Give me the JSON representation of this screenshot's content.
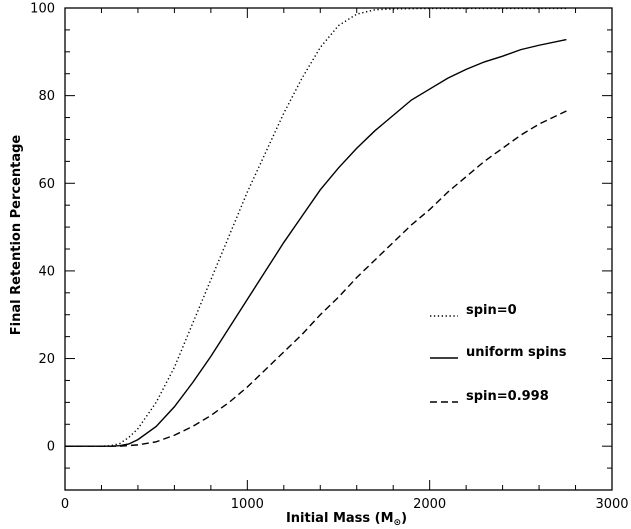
{
  "chart_data": {
    "type": "line",
    "title": "",
    "xlabel": "Initial Mass (M",
    "xlabel_sub": "⊙",
    "xlabel_close": ")",
    "ylabel": "Final Retention Percentage",
    "xlim": [
      0,
      3000
    ],
    "ylim": [
      -10,
      100
    ],
    "xticks": [
      0,
      1000,
      2000,
      3000
    ],
    "yticks": [
      0,
      20,
      40,
      60,
      80,
      100
    ],
    "xtick_labels": [
      "0",
      "1000",
      "2000",
      "3000"
    ],
    "ytick_labels": [
      "0",
      "20",
      "40",
      "60",
      "80",
      "100"
    ],
    "grid": false,
    "legend_position": "right-center",
    "series": [
      {
        "name": "spin=0",
        "style": "dotted",
        "color": "#000000",
        "x": [
          0,
          200,
          250,
          300,
          350,
          400,
          500,
          600,
          700,
          800,
          900,
          1000,
          1100,
          1200,
          1300,
          1400,
          1500,
          1600,
          1700,
          1800,
          2000,
          2200,
          2400,
          2600,
          2750
        ],
        "y": [
          0,
          0,
          0.1,
          0.6,
          2,
          4,
          10,
          18,
          28,
          38,
          48,
          58,
          67,
          76,
          84,
          91,
          96,
          98.6,
          99.6,
          99.8,
          99.9,
          99.9,
          99.9,
          99.9,
          99.9
        ]
      },
      {
        "name": "uniform spins",
        "style": "solid",
        "color": "#000000",
        "x": [
          0,
          250,
          300,
          350,
          400,
          500,
          600,
          700,
          800,
          900,
          1000,
          1100,
          1200,
          1300,
          1400,
          1500,
          1600,
          1700,
          1800,
          1900,
          2000,
          2100,
          2200,
          2300,
          2400,
          2500,
          2600,
          2750
        ],
        "y": [
          0,
          0,
          0.1,
          0.5,
          1.5,
          4.5,
          9,
          14.5,
          20.5,
          27,
          33.5,
          40,
          46.5,
          52.5,
          58.5,
          63.5,
          68,
          72,
          75.5,
          79,
          81.5,
          84,
          86,
          87.7,
          89,
          90.5,
          91.5,
          92.8
        ]
      },
      {
        "name": "spin=0.998",
        "style": "dashed",
        "color": "#000000",
        "x": [
          0,
          300,
          400,
          500,
          600,
          700,
          800,
          900,
          1000,
          1100,
          1200,
          1300,
          1400,
          1500,
          1600,
          1700,
          1800,
          1900,
          2000,
          2100,
          2200,
          2300,
          2400,
          2500,
          2600,
          2750
        ],
        "y": [
          0,
          0,
          0.3,
          1,
          2.5,
          4.5,
          7,
          10,
          13.5,
          17.5,
          21.5,
          25.5,
          30,
          34,
          38.5,
          42.5,
          46.5,
          50.5,
          54,
          58,
          61.5,
          65,
          68,
          71,
          73.5,
          76.5
        ]
      }
    ]
  }
}
